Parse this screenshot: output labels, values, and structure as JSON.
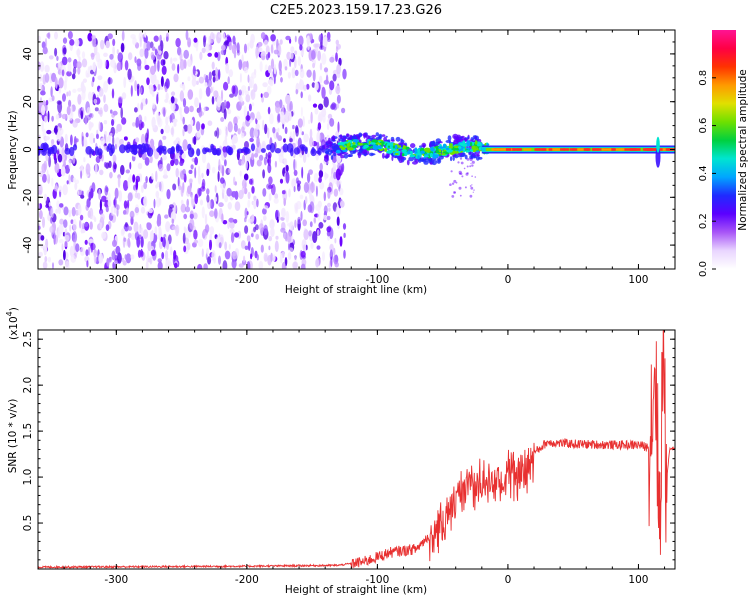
{
  "figure": {
    "title": "C2E5.2023.159.17.23.G26"
  },
  "chart_data": [
    {
      "type": "heatmap",
      "title": "C2E5.2023.159.17.23.G26",
      "xlabel": "Height of straight line (km)",
      "ylabel": "Frequency (Hz)",
      "xlim": [
        -360,
        128
      ],
      "ylim": [
        -50,
        50
      ],
      "xticks": [
        -300,
        -200,
        -100,
        0,
        100
      ],
      "yticks": [
        -40,
        -20,
        0,
        20,
        40
      ],
      "grid": false,
      "colorbar": {
        "label": "Normalized spectral amplitude",
        "range": [
          0,
          1
        ],
        "ticks": [
          0.0,
          0.2,
          0.4,
          0.6,
          0.8
        ],
        "colors": [
          "#ffffff",
          "#e9d5ff",
          "#a855f7",
          "#5b00ff",
          "#1f2bff",
          "#00a6ff",
          "#00e5d0",
          "#00d040",
          "#6ee000",
          "#e0e000",
          "#ff9a00",
          "#ff3300",
          "#ff0044",
          "#ff1493"
        ]
      },
      "features": [
        {
          "name": "noise",
          "x_range": [
            -360,
            -125
          ],
          "freq_range": [
            -50,
            48
          ]
        },
        {
          "name": "signal_band",
          "points": [
            {
              "x": -140,
              "f": 0
            },
            {
              "x": -120,
              "f": 2
            },
            {
              "x": -100,
              "f": 2
            },
            {
              "x": -85,
              "f": 0
            },
            {
              "x": -70,
              "f": -2
            },
            {
              "x": -55,
              "f": -1
            },
            {
              "x": -40,
              "f": 1
            },
            {
              "x": -25,
              "f": 1
            },
            {
              "x": -10,
              "f": 0
            },
            {
              "x": 0,
              "f": 0
            },
            {
              "x": 50,
              "f": 0
            },
            {
              "x": 100,
              "f": 0
            },
            {
              "x": 128,
              "f": 0
            }
          ]
        }
      ]
    },
    {
      "type": "line",
      "xlabel": "Height of straight line (km)",
      "ylabel": "SNR (10 * v/v)",
      "y_multiplier": "(x10",
      "y_multiplier_exp": "4",
      "xlim": [
        -360,
        128
      ],
      "ylim": [
        0,
        2.6
      ],
      "xticks": [
        -300,
        -200,
        -100,
        0,
        100
      ],
      "yticks": [
        0.5,
        1.0,
        1.5,
        2.0,
        2.5
      ],
      "grid": false,
      "series": [
        {
          "color": "#e83030",
          "envelope": [
            {
              "x": -360,
              "y": 0.02
            },
            {
              "x": -200,
              "y": 0.03
            },
            {
              "x": -130,
              "y": 0.04
            },
            {
              "x": -110,
              "y": 0.08
            },
            {
              "x": -90,
              "y": 0.18
            },
            {
              "x": -70,
              "y": 0.22
            },
            {
              "x": -55,
              "y": 0.45
            },
            {
              "x": -45,
              "y": 0.75
            },
            {
              "x": -35,
              "y": 0.95
            },
            {
              "x": -25,
              "y": 1.05
            },
            {
              "x": -15,
              "y": 1.05
            },
            {
              "x": 0,
              "y": 1.1
            },
            {
              "x": 15,
              "y": 1.2
            },
            {
              "x": 30,
              "y": 1.38
            },
            {
              "x": 50,
              "y": 1.36
            },
            {
              "x": 80,
              "y": 1.35
            },
            {
              "x": 100,
              "y": 1.35
            },
            {
              "x": 108,
              "y": 1.32
            },
            {
              "x": 113,
              "y": 2.3
            },
            {
              "x": 116,
              "y": 0.4
            },
            {
              "x": 119,
              "y": 2.55
            },
            {
              "x": 121,
              "y": 0.9
            },
            {
              "x": 124,
              "y": 1.31
            },
            {
              "x": 128,
              "y": 1.31
            }
          ]
        }
      ]
    }
  ]
}
